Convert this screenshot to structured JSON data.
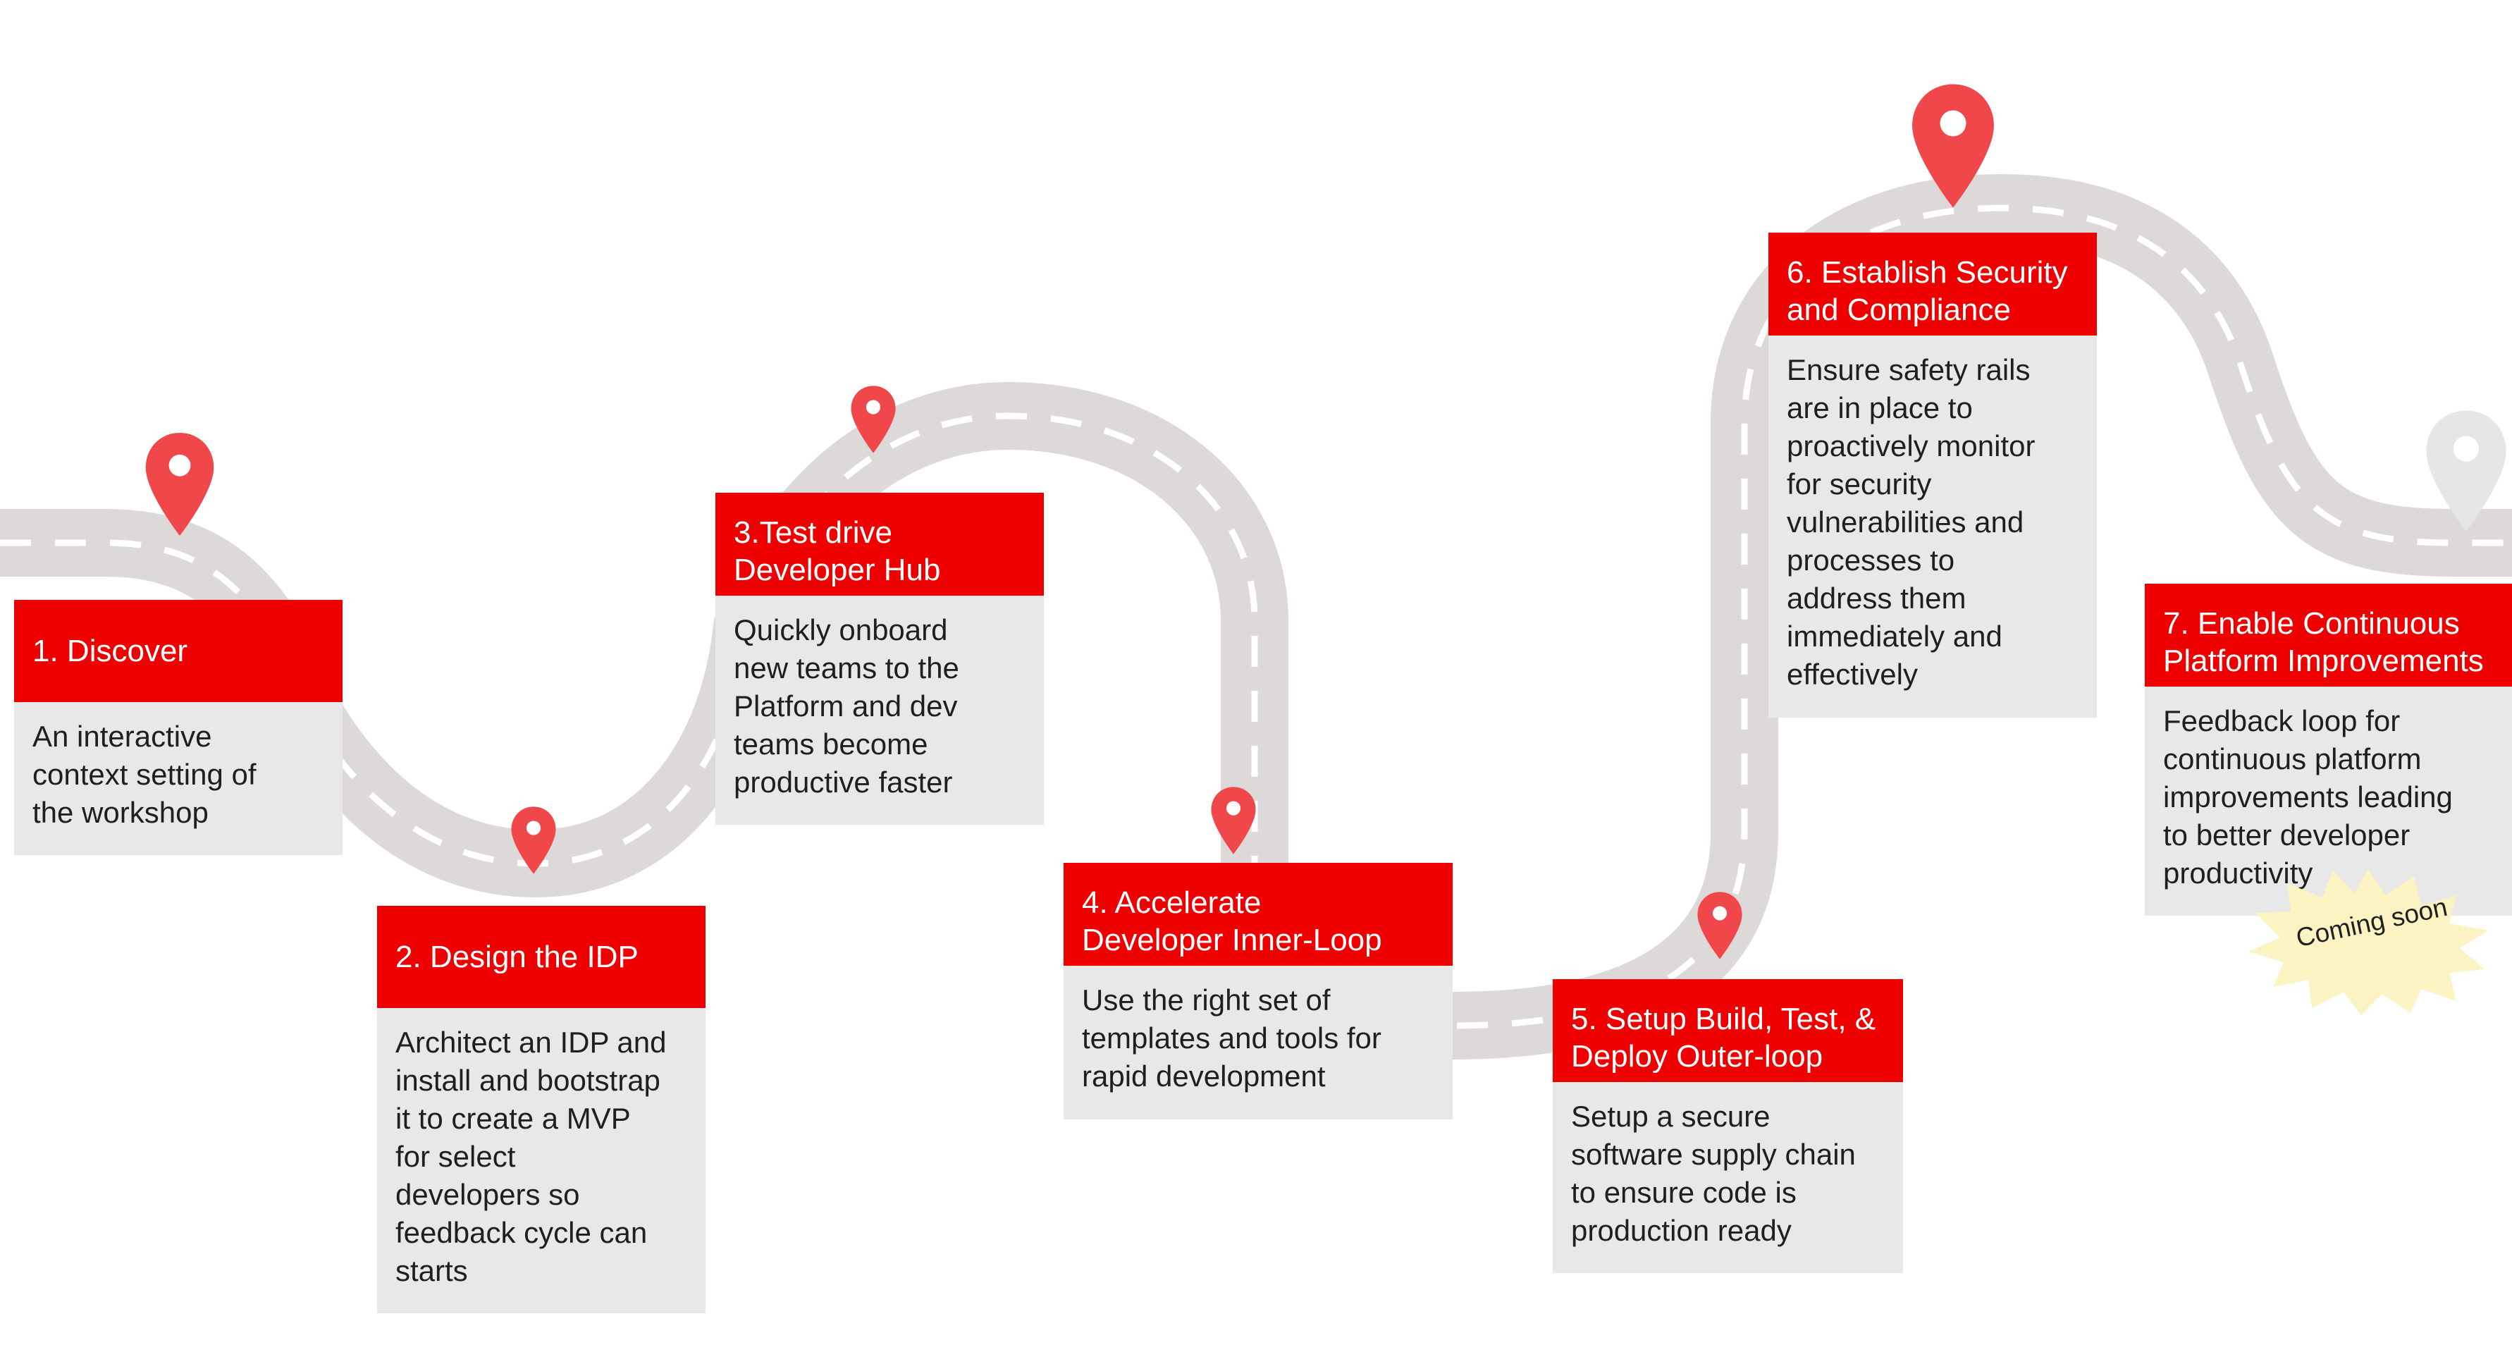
{
  "colors": {
    "accent": "#ee0000",
    "pin": "#f0484a",
    "pin_muted": "#e6e6e6",
    "card_body": "#e8e8e8",
    "road": "#ded9d9",
    "road_dash": "#ffffff",
    "badge": "#fbf3c2"
  },
  "stages": [
    {
      "title": [
        "1. Discover"
      ],
      "body": [
        "An interactive",
        "context setting of",
        "the workshop"
      ]
    },
    {
      "title": [
        "2. Design the IDP"
      ],
      "body": [
        "Architect an IDP and",
        "install and bootstrap",
        "it to create a MVP",
        "for select",
        "developers so",
        "feedback cycle can",
        "starts"
      ]
    },
    {
      "title": [
        "3.Test drive",
        "Developer Hub"
      ],
      "body": [
        "Quickly onboard",
        "new teams to the",
        "Platform and dev",
        "teams become",
        "productive faster"
      ]
    },
    {
      "title": [
        "4. Accelerate",
        "Developer Inner-Loop"
      ],
      "body": [
        "Use the right set of",
        "templates and  tools for",
        "rapid development"
      ]
    },
    {
      "title": [
        "5. Setup Build, Test, &",
        "Deploy Outer-loop"
      ],
      "body": [
        "Setup a secure",
        "software supply chain",
        "to ensure code is",
        "production ready"
      ]
    },
    {
      "title": [
        "6. Establish Security",
        "and Compliance"
      ],
      "body": [
        "Ensure  safety rails",
        "are in place to",
        "proactively monitor",
        "for security",
        "vulnerabilities and",
        "processes to",
        "address them",
        "immediately and",
        "effectively"
      ]
    },
    {
      "title": [
        "7. Enable Continuous",
        "Platform Improvements"
      ],
      "body": [
        "Feedback loop for",
        "continuous platform",
        "improvements leading",
        "to better developer",
        "productivity"
      ]
    }
  ],
  "badge": {
    "label": "Coming soon"
  },
  "icons": {
    "pin": "map-pin-icon",
    "badge": "starburst-badge"
  }
}
